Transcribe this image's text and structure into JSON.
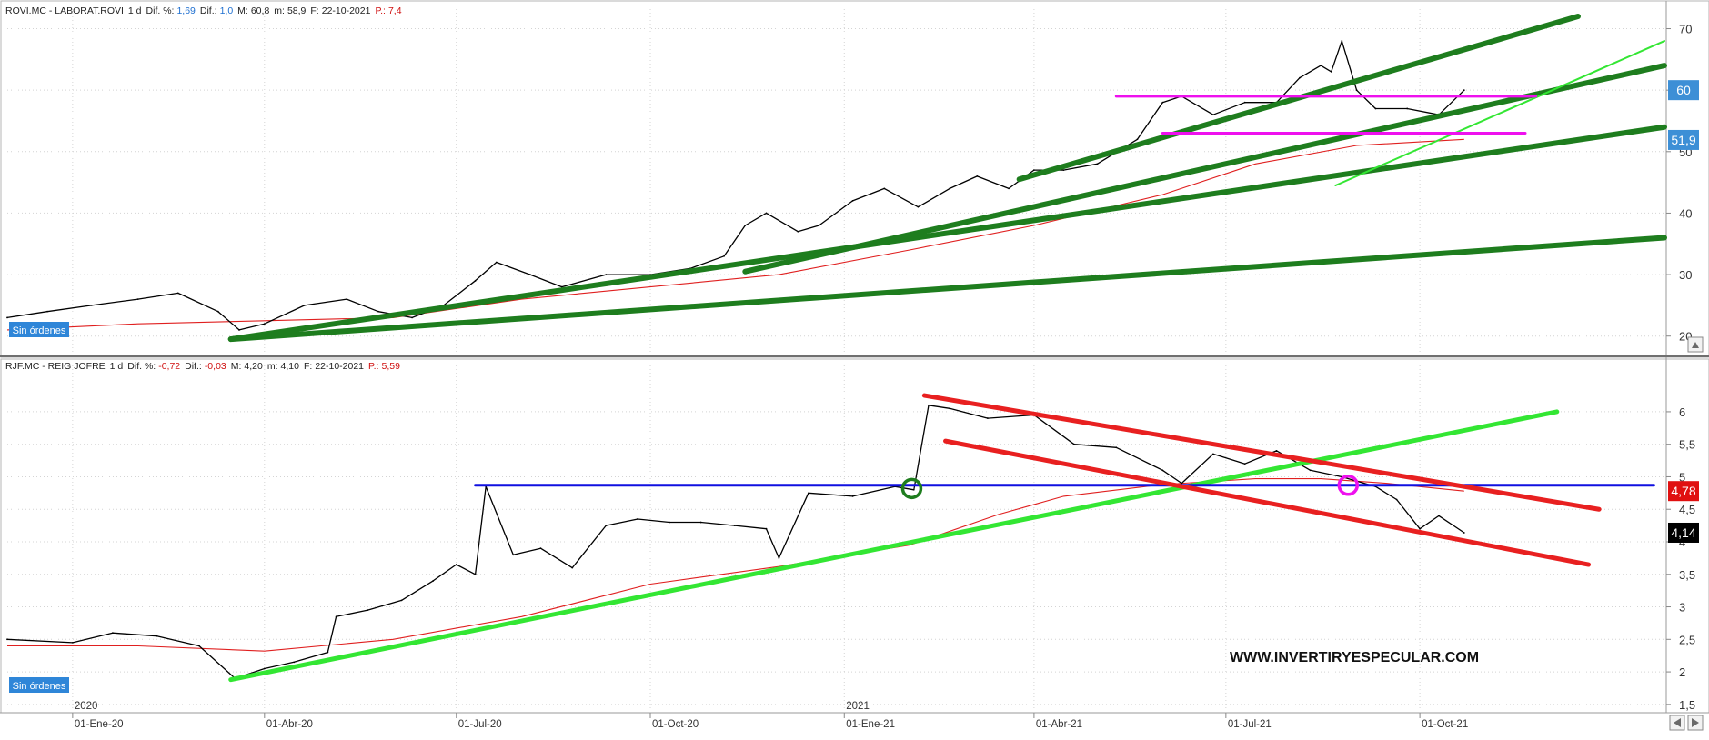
{
  "panels": [
    {
      "id": "rovi",
      "header": {
        "symbol": "ROVI.MC - LABORAT.ROVI",
        "tf": "1 d",
        "dif_pct_label": "Dif. %:",
        "dif_pct": "1,69",
        "dif_label": "Dif.:",
        "dif": "1,0",
        "max_label": "M:",
        "max": "60,8",
        "min_label": "m:",
        "min": "58,9",
        "date_label": "F:",
        "date": "22-10-2021",
        "p_label": "P.:",
        "p": "7,4"
      },
      "orders_label": "Sin órdenes",
      "y_ticks": [
        "70",
        "60",
        "50",
        "40",
        "30",
        "20"
      ],
      "y_tick_values": [
        70,
        60,
        50,
        40,
        30,
        20
      ],
      "price_badges": [
        {
          "label": "60",
          "value": 60,
          "color": "#3d8fd6"
        },
        {
          "label": "51,9",
          "value": 51.9,
          "color": "#3d8fd6"
        }
      ]
    },
    {
      "id": "rjf",
      "header": {
        "symbol": "RJF.MC - REIG JOFRE",
        "tf": "1 d",
        "dif_pct_label": "Dif. %:",
        "dif_pct": "-0,72",
        "dif_label": "Dif.:",
        "dif": "-0,03",
        "max_label": "M:",
        "max": "4,20",
        "min_label": "m:",
        "min": "4,10",
        "date_label": "F:",
        "date": "22-10-2021",
        "p_label": "P.:",
        "p": "5,59"
      },
      "orders_label": "Sin órdenes",
      "y_ticks": [
        "6",
        "5,5",
        "5",
        "4,5",
        "4",
        "3,5",
        "3",
        "2,5",
        "2",
        "1,5"
      ],
      "y_tick_values": [
        6,
        5.5,
        5,
        4.5,
        4,
        3.5,
        3,
        2.5,
        2,
        1.5
      ],
      "price_badges": [
        {
          "label": "4,78",
          "value": 4.78,
          "color": "#e01010"
        },
        {
          "label": "4,14",
          "value": 4.14,
          "color": "#000000"
        }
      ],
      "watermark": "WWW.INVERTIRYESPECULAR.COM"
    }
  ],
  "x_axis": {
    "ticks": [
      "01-Ene-20",
      "01-Abr-20",
      "01-Jul-20",
      "01-Oct-20",
      "01-Ene-21",
      "01-Abr-21",
      "01-Jul-21",
      "01-Oct-21"
    ],
    "tick_dates": [
      "2020-01-01",
      "2020-04-01",
      "2020-07-01",
      "2020-10-01",
      "2021-01-01",
      "2021-04-01",
      "2021-07-01",
      "2021-10-01"
    ],
    "year_labels": [
      {
        "label": "2020",
        "date": "2020-01-01"
      },
      {
        "label": "2021",
        "date": "2021-01-01"
      }
    ]
  },
  "chart_data": [
    {
      "type": "line",
      "title": "ROVI.MC - LABORAT.ROVI",
      "ylim": [
        17,
        72
      ],
      "x_range": [
        "2019-12-01",
        "2022-01-25"
      ],
      "series": [
        {
          "kind": "price",
          "color": "#000000",
          "x": [
            "2019-12-01",
            "2019-12-20",
            "2020-01-10",
            "2020-02-01",
            "2020-02-20",
            "2020-03-10",
            "2020-03-20",
            "2020-04-01",
            "2020-04-20",
            "2020-05-10",
            "2020-05-25",
            "2020-06-10",
            "2020-06-25",
            "2020-07-10",
            "2020-07-20",
            "2020-08-05",
            "2020-08-20",
            "2020-09-10",
            "2020-10-01",
            "2020-10-20",
            "2020-11-05",
            "2020-11-15",
            "2020-11-25",
            "2020-12-10",
            "2020-12-20",
            "2021-01-05",
            "2021-01-20",
            "2021-02-05",
            "2021-02-20",
            "2021-03-05",
            "2021-03-20",
            "2021-04-01",
            "2021-04-15",
            "2021-05-01",
            "2021-05-20",
            "2021-06-01",
            "2021-06-10",
            "2021-06-25",
            "2021-07-10",
            "2021-07-25",
            "2021-08-05",
            "2021-08-15",
            "2021-08-20",
            "2021-08-25",
            "2021-09-01",
            "2021-09-10",
            "2021-09-25",
            "2021-10-10",
            "2021-10-22"
          ],
          "y": [
            23,
            24,
            25,
            26,
            27,
            24,
            21,
            22,
            25,
            26,
            24,
            23,
            25,
            29,
            32,
            30,
            28,
            30,
            30,
            31,
            33,
            38,
            40,
            37,
            38,
            42,
            44,
            41,
            44,
            46,
            44,
            47,
            47,
            48,
            52,
            58,
            59,
            56,
            58,
            58,
            62,
            64,
            63,
            68,
            60,
            57,
            57,
            56,
            60
          ]
        },
        {
          "kind": "moving-average",
          "color": "#e02020",
          "x": [
            "2019-12-01",
            "2020-02-01",
            "2020-04-01",
            "2020-06-01",
            "2020-08-01",
            "2020-10-01",
            "2020-12-01",
            "2021-02-01",
            "2021-04-01",
            "2021-06-01",
            "2021-07-15",
            "2021-09-01",
            "2021-10-22"
          ],
          "y": [
            21,
            22,
            22.5,
            23,
            26,
            28,
            30,
            34,
            38,
            43,
            48,
            51,
            52
          ]
        }
      ],
      "overlays": [
        {
          "kind": "trendline",
          "color": "#1e7d1e",
          "width": 6,
          "points": [
            [
              "2020-03-16",
              19.5
            ],
            [
              "2022-01-25",
              36
            ]
          ]
        },
        {
          "kind": "trendline",
          "color": "#1e7d1e",
          "width": 6,
          "points": [
            [
              "2020-03-16",
              19.5
            ],
            [
              "2022-01-25",
              54
            ]
          ]
        },
        {
          "kind": "trendline",
          "color": "#1e7d1e",
          "width": 6,
          "points": [
            [
              "2020-11-15",
              30.5
            ],
            [
              "2022-01-25",
              64
            ]
          ]
        },
        {
          "kind": "trendline",
          "color": "#1e7d1e",
          "width": 6,
          "points": [
            [
              "2021-03-25",
              45.5
            ],
            [
              "2021-12-15",
              72
            ]
          ]
        },
        {
          "kind": "trendline",
          "color": "#33e633",
          "width": 2,
          "points": [
            [
              "2021-08-22",
              44.5
            ],
            [
              "2022-01-25",
              68
            ]
          ]
        },
        {
          "kind": "hline",
          "color": "#ee10ee",
          "width": 3,
          "points": [
            [
              "2021-05-10",
              59
            ],
            [
              "2021-11-25",
              59
            ]
          ]
        },
        {
          "kind": "hline",
          "color": "#ee10ee",
          "width": 3,
          "points": [
            [
              "2021-06-01",
              53
            ],
            [
              "2021-11-20",
              53
            ]
          ]
        }
      ]
    },
    {
      "type": "line",
      "title": "RJF.MC - REIG JOFRE",
      "ylim": [
        1.4,
        6.6
      ],
      "x_range": [
        "2019-12-01",
        "2022-01-25"
      ],
      "series": [
        {
          "kind": "price",
          "color": "#000000",
          "x": [
            "2019-12-01",
            "2020-01-01",
            "2020-01-20",
            "2020-02-10",
            "2020-03-01",
            "2020-03-18",
            "2020-04-01",
            "2020-04-15",
            "2020-05-01",
            "2020-05-05",
            "2020-05-20",
            "2020-06-05",
            "2020-06-20",
            "2020-07-01",
            "2020-07-10",
            "2020-07-15",
            "2020-07-28",
            "2020-08-10",
            "2020-08-25",
            "2020-09-10",
            "2020-09-25",
            "2020-10-10",
            "2020-10-25",
            "2020-11-10",
            "2020-11-25",
            "2020-12-01",
            "2020-12-15",
            "2021-01-05",
            "2021-01-25",
            "2021-02-03",
            "2021-02-10",
            "2021-02-20",
            "2021-03-10",
            "2021-04-01",
            "2021-04-20",
            "2021-05-10",
            "2021-06-01",
            "2021-06-10",
            "2021-06-25",
            "2021-07-10",
            "2021-07-25",
            "2021-08-10",
            "2021-08-25",
            "2021-09-10",
            "2021-09-20",
            "2021-10-01",
            "2021-10-10",
            "2021-10-22"
          ],
          "y": [
            2.5,
            2.45,
            2.6,
            2.55,
            2.4,
            1.9,
            2.05,
            2.15,
            2.3,
            2.85,
            2.95,
            3.1,
            3.4,
            3.65,
            3.5,
            4.85,
            3.8,
            3.9,
            3.6,
            4.25,
            4.35,
            4.3,
            4.3,
            4.25,
            4.2,
            3.75,
            4.75,
            4.7,
            4.85,
            4.8,
            6.1,
            6.05,
            5.9,
            5.95,
            5.5,
            5.45,
            5.1,
            4.9,
            5.35,
            5.2,
            5.4,
            5.1,
            5.0,
            4.85,
            4.65,
            4.2,
            4.4,
            4.14
          ]
        },
        {
          "kind": "moving-average",
          "color": "#e02020",
          "x": [
            "2019-12-01",
            "2020-02-01",
            "2020-04-01",
            "2020-06-01",
            "2020-08-01",
            "2020-10-01",
            "2020-12-01",
            "2021-02-01",
            "2021-03-15",
            "2021-04-15",
            "2021-06-01",
            "2021-07-15",
            "2021-08-15",
            "2021-09-15",
            "2021-10-22"
          ],
          "y": [
            2.4,
            2.4,
            2.32,
            2.5,
            2.85,
            3.35,
            3.62,
            3.95,
            4.42,
            4.7,
            4.88,
            4.97,
            4.97,
            4.9,
            4.78
          ]
        }
      ],
      "overlays": [
        {
          "kind": "trendline",
          "color": "#33e633",
          "width": 5,
          "points": [
            [
              "2020-03-16",
              1.88
            ],
            [
              "2021-12-05",
              6.0
            ]
          ]
        },
        {
          "kind": "hline",
          "color": "#1010e0",
          "width": 3,
          "points": [
            [
              "2020-07-10",
              4.87
            ],
            [
              "2022-01-20",
              4.87
            ]
          ]
        },
        {
          "kind": "trendline",
          "color": "#e82020",
          "width": 5,
          "points": [
            [
              "2021-02-08",
              6.25
            ],
            [
              "2021-12-25",
              4.5
            ]
          ]
        },
        {
          "kind": "trendline",
          "color": "#e82020",
          "width": 5,
          "points": [
            [
              "2021-02-18",
              5.55
            ],
            [
              "2021-12-20",
              3.65
            ]
          ]
        },
        {
          "kind": "circle",
          "color": "#1e7d1e",
          "at": [
            "2021-02-02",
            4.82
          ]
        },
        {
          "kind": "circle",
          "color": "#ee10ee",
          "at": [
            "2021-08-28",
            4.87
          ]
        }
      ]
    }
  ]
}
